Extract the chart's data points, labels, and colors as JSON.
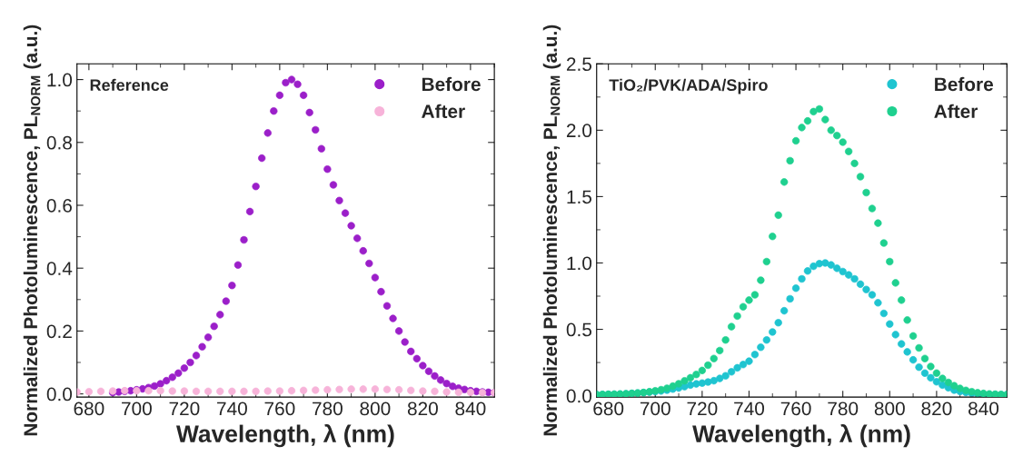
{
  "chart_data": [
    {
      "type": "scatter",
      "xlabel": "Wavelength, λ (nm)",
      "ylabel": "Normalized Photoluminescence, PL$_{NORM}$ (a.u.)",
      "annotations": [
        "Reference"
      ],
      "xlim": [
        675,
        850
      ],
      "xticks": [
        680,
        700,
        720,
        740,
        760,
        780,
        800,
        820,
        840
      ],
      "ylim": [
        -0.01,
        1.05
      ],
      "yticks": [
        {
          "value": 0,
          "label": "0.0"
        },
        {
          "value": 0.2,
          "label": "0.2"
        },
        {
          "value": 0.4,
          "label": "0.4"
        },
        {
          "value": 0.6,
          "label": "0.6"
        },
        {
          "value": 0.8,
          "label": "0.8"
        },
        {
          "value": 1.0,
          "label": "1.0"
        }
      ],
      "legend": "top right",
      "marker": "circle",
      "grid": false,
      "series": [
        {
          "name": "Before",
          "color": "#9b1fc9",
          "x": [
            690,
            692.5,
            695,
            697.5,
            700,
            702.5,
            705,
            707.5,
            710,
            712.5,
            715,
            717.5,
            720,
            722.5,
            725,
            727.5,
            730,
            732.5,
            735,
            737.5,
            740,
            742.5,
            745,
            747.5,
            750,
            752.5,
            755,
            757.5,
            760,
            762.5,
            765,
            767.5,
            770,
            772.5,
            775,
            777.5,
            780,
            782.5,
            785,
            787.5,
            790,
            792.5,
            795,
            797.5,
            800,
            802.5,
            805,
            807.5,
            810,
            812.5,
            815,
            817.5,
            820,
            822.5,
            825,
            827.5,
            830,
            832.5,
            835,
            837.5,
            840,
            842.5,
            845,
            847.5,
            850
          ],
          "values": [
            0.004,
            0.006,
            0.008,
            0.01,
            0.013,
            0.016,
            0.02,
            0.025,
            0.032,
            0.042,
            0.053,
            0.066,
            0.082,
            0.1,
            0.122,
            0.15,
            0.18,
            0.215,
            0.252,
            0.295,
            0.345,
            0.41,
            0.49,
            0.58,
            0.66,
            0.75,
            0.83,
            0.9,
            0.95,
            0.99,
            1.0,
            0.985,
            0.95,
            0.895,
            0.84,
            0.78,
            0.715,
            0.665,
            0.615,
            0.575,
            0.535,
            0.495,
            0.455,
            0.415,
            0.37,
            0.325,
            0.28,
            0.24,
            0.2,
            0.165,
            0.135,
            0.112,
            0.09,
            0.072,
            0.057,
            0.044,
            0.033,
            0.024,
            0.018,
            0.014,
            0.01,
            0.008,
            0.006,
            0.005,
            0.004
          ]
        },
        {
          "name": "After",
          "color": "#f7b3d9",
          "x": [
            675,
            680,
            685,
            690,
            695,
            700,
            705,
            710,
            715,
            720,
            725,
            730,
            735,
            740,
            745,
            750,
            755,
            760,
            765,
            770,
            775,
            780,
            785,
            790,
            795,
            800,
            805,
            810,
            815,
            820,
            825,
            830,
            835,
            840,
            845,
            850
          ],
          "values": [
            0.006,
            0.007,
            0.008,
            0.009,
            0.01,
            0.01,
            0.01,
            0.01,
            0.009,
            0.009,
            0.008,
            0.008,
            0.008,
            0.008,
            0.008,
            0.008,
            0.009,
            0.009,
            0.01,
            0.011,
            0.012,
            0.013,
            0.014,
            0.015,
            0.015,
            0.015,
            0.014,
            0.013,
            0.011,
            0.009,
            0.008,
            0.006,
            0.005,
            0.005,
            0.004,
            0.004
          ]
        }
      ]
    },
    {
      "type": "scatter",
      "xlabel": "Wavelength, λ (nm)",
      "ylabel": "Normalized Photoluminescence, PL$_{NORM}$ (a.u.)",
      "annotations": [
        "TiO₂/PVK/ADA/Spiro"
      ],
      "xlim": [
        675,
        850
      ],
      "xticks": [
        680,
        700,
        720,
        740,
        760,
        780,
        800,
        820,
        840
      ],
      "ylim": [
        -0.01,
        2.5
      ],
      "yticks": [
        {
          "value": 0,
          "label": "0.0"
        },
        {
          "value": 0.5,
          "label": "0.5"
        },
        {
          "value": 1.0,
          "label": "1.0"
        },
        {
          "value": 1.5,
          "label": "1.5"
        },
        {
          "value": 2.0,
          "label": "2.0"
        },
        {
          "value": 2.5,
          "label": "2.5"
        }
      ],
      "legend": "top right",
      "marker": "circle",
      "grid": false,
      "series": [
        {
          "name": "Before",
          "color": "#1fc4d0",
          "x": [
            675,
            677.5,
            680,
            682.5,
            685,
            687.5,
            690,
            692.5,
            695,
            697.5,
            700,
            702.5,
            705,
            707.5,
            710,
            712.5,
            715,
            717.5,
            720,
            722.5,
            725,
            727.5,
            730,
            732.5,
            735,
            737.5,
            740,
            742.5,
            745,
            747.5,
            750,
            752.5,
            755,
            757.5,
            760,
            762.5,
            765,
            767.5,
            770,
            772.5,
            775,
            777.5,
            780,
            782.5,
            785,
            787.5,
            790,
            792.5,
            795,
            797.5,
            800,
            802.5,
            805,
            807.5,
            810,
            812.5,
            815,
            817.5,
            820,
            822.5,
            825,
            827.5,
            830,
            832.5,
            835,
            837.5,
            840,
            842.5,
            845,
            847.5,
            850
          ],
          "values": [
            0.008,
            0.009,
            0.01,
            0.011,
            0.012,
            0.014,
            0.017,
            0.02,
            0.023,
            0.027,
            0.031,
            0.036,
            0.042,
            0.05,
            0.058,
            0.068,
            0.08,
            0.089,
            0.095,
            0.103,
            0.113,
            0.13,
            0.15,
            0.18,
            0.21,
            0.235,
            0.26,
            0.31,
            0.365,
            0.42,
            0.48,
            0.55,
            0.64,
            0.73,
            0.81,
            0.88,
            0.94,
            0.975,
            0.995,
            1.0,
            0.985,
            0.96,
            0.935,
            0.91,
            0.88,
            0.84,
            0.8,
            0.76,
            0.7,
            0.62,
            0.54,
            0.46,
            0.39,
            0.33,
            0.27,
            0.215,
            0.17,
            0.135,
            0.105,
            0.08,
            0.06,
            0.042,
            0.032,
            0.024,
            0.018,
            0.014,
            0.011,
            0.01,
            0.009,
            0.008,
            0.008
          ]
        },
        {
          "name": "After",
          "color": "#1fd08f",
          "x": [
            675,
            677.5,
            680,
            682.5,
            685,
            687.5,
            690,
            692.5,
            695,
            697.5,
            700,
            702.5,
            705,
            707.5,
            710,
            712.5,
            715,
            717.5,
            720,
            722.5,
            725,
            727.5,
            730,
            732.5,
            735,
            737.5,
            740,
            742.5,
            745,
            747.5,
            750,
            752.5,
            755,
            757.5,
            760,
            762.5,
            765,
            767.5,
            770,
            772.5,
            775,
            777.5,
            780,
            782.5,
            785,
            787.5,
            790,
            792.5,
            795,
            797.5,
            800,
            802.5,
            805,
            807.5,
            810,
            812.5,
            815,
            817.5,
            820,
            822.5,
            825,
            827.5,
            830,
            832.5,
            835,
            837.5,
            840,
            842.5,
            845,
            847.5,
            850
          ],
          "values": [
            0.008,
            0.009,
            0.01,
            0.011,
            0.012,
            0.014,
            0.017,
            0.02,
            0.024,
            0.03,
            0.037,
            0.045,
            0.056,
            0.072,
            0.09,
            0.112,
            0.135,
            0.16,
            0.19,
            0.23,
            0.28,
            0.34,
            0.42,
            0.52,
            0.6,
            0.67,
            0.72,
            0.76,
            0.87,
            1.01,
            1.2,
            1.36,
            1.61,
            1.77,
            1.92,
            2.02,
            2.07,
            2.14,
            2.16,
            2.08,
            2.0,
            1.96,
            1.91,
            1.84,
            1.75,
            1.65,
            1.53,
            1.41,
            1.3,
            1.15,
            1.01,
            0.85,
            0.72,
            0.57,
            0.45,
            0.36,
            0.28,
            0.22,
            0.17,
            0.13,
            0.1,
            0.075,
            0.055,
            0.04,
            0.03,
            0.022,
            0.017,
            0.013,
            0.011,
            0.009,
            0.008
          ]
        }
      ]
    }
  ]
}
